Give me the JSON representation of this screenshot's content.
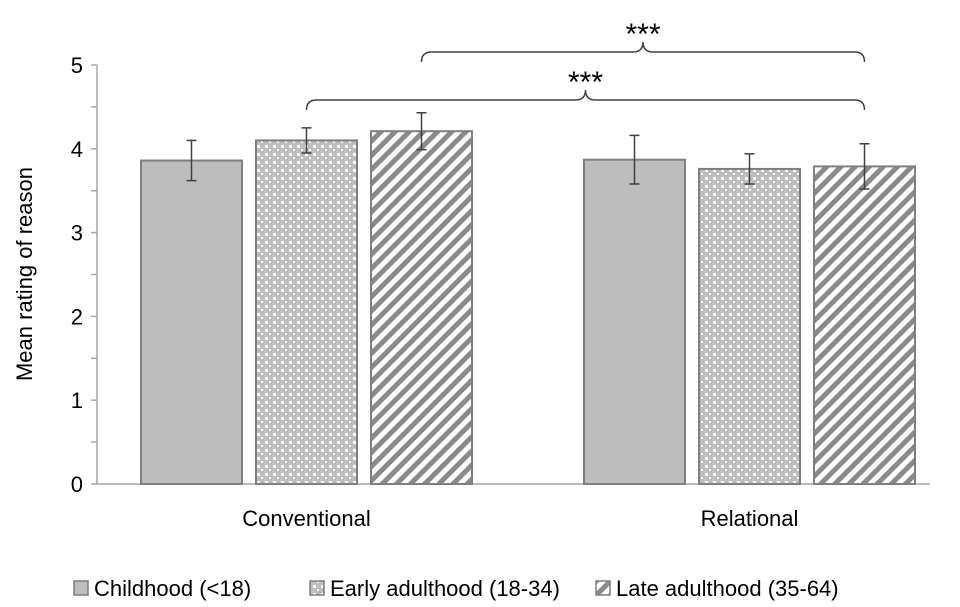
{
  "chart_data": {
    "type": "bar",
    "categories": [
      "Conventional",
      "Relational"
    ],
    "series": [
      {
        "name": "Childhood (<18)",
        "values": [
          3.86,
          3.87
        ],
        "errors": [
          0.24,
          0.29
        ],
        "pattern": "solid"
      },
      {
        "name": "Early adulthood (18-34)",
        "values": [
          4.1,
          3.76
        ],
        "errors": [
          0.15,
          0.18
        ],
        "pattern": "dots"
      },
      {
        "name": "Late adulthood (35-64)",
        "values": [
          4.21,
          3.79
        ],
        "errors": [
          0.22,
          0.27
        ],
        "pattern": "diagonal"
      }
    ],
    "ylabel": "Mean rating of reason",
    "xlabel": "",
    "ylim": [
      0,
      5
    ],
    "yticks": [
      "0",
      "1",
      "2",
      "3",
      "4",
      "5"
    ],
    "legend_position": "bottom",
    "grid": false,
    "significance": [
      {
        "label": "***",
        "from_series": "Early adulthood (18-34)",
        "from_category": "Conventional",
        "to_series": "Late adulthood (35-64)",
        "to_category": "Relational"
      },
      {
        "label": "***",
        "from_series": "Late adulthood (35-64)",
        "from_category": "Conventional",
        "to_series": "Late adulthood (35-64)",
        "to_category": "Relational"
      }
    ],
    "colors": {
      "bar_fill": "#bdbdbd",
      "bar_stroke": "#7f7f7f",
      "pattern_mark": "#7f7f7f",
      "axis": "#a6a6a6"
    }
  }
}
